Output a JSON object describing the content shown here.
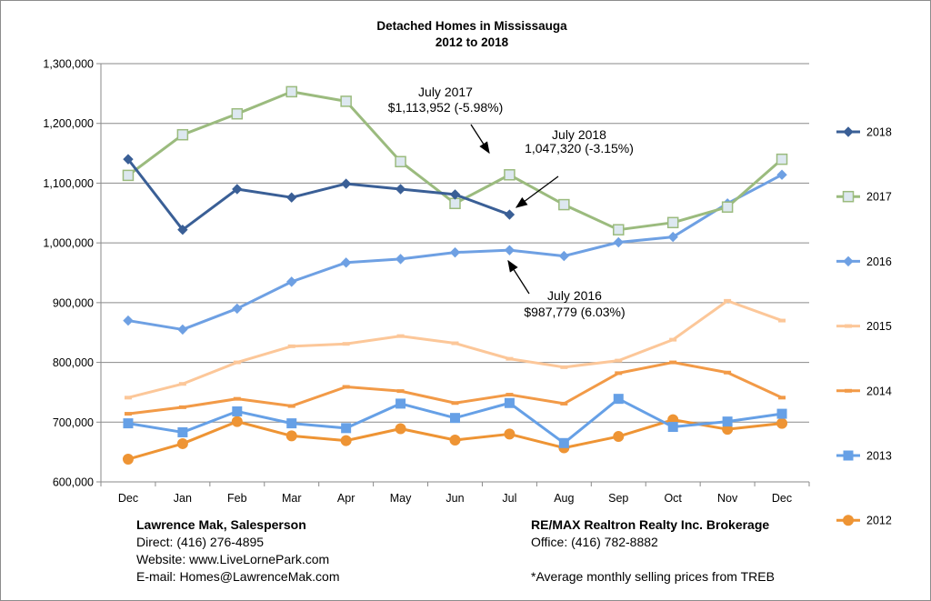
{
  "chart_data": {
    "type": "line",
    "title": "Detached Homes in Mississauga",
    "subtitle": "2012 to 2018",
    "categories": [
      "Dec",
      "Jan",
      "Feb",
      "Mar",
      "Apr",
      "May",
      "Jun",
      "Jul",
      "Aug",
      "Sep",
      "Oct",
      "Nov",
      "Dec"
    ],
    "ylim": [
      600000,
      1300000
    ],
    "yticks": [
      "600,000",
      "700,000",
      "800,000",
      "900,000",
      "1,000,000",
      "1,100,000",
      "1,200,000",
      "1,300,000"
    ],
    "grid": true,
    "legend_position": "right",
    "series": [
      {
        "name": "2018",
        "color": "#3a5f96",
        "marker": "diamond",
        "values": [
          1140000,
          1022000,
          1090000,
          1076000,
          1099000,
          1090000,
          1081000,
          1047320,
          null,
          null,
          null,
          null,
          null
        ]
      },
      {
        "name": "2017",
        "color": "#9bbb7e",
        "marker": "square-open",
        "values": [
          1113000,
          1181000,
          1216000,
          1253000,
          1237000,
          1136000,
          1066000,
          1113952,
          1064000,
          1022000,
          1034000,
          1060000,
          1140000
        ]
      },
      {
        "name": "2016",
        "color": "#6ea0e3",
        "marker": "diamond",
        "values": [
          870000,
          855000,
          890000,
          935000,
          967000,
          973000,
          984000,
          987779,
          978000,
          1001000,
          1010000,
          1066000,
          1114000
        ]
      },
      {
        "name": "2015",
        "color": "#fcc799",
        "marker": "dash",
        "values": [
          741000,
          764000,
          800000,
          827000,
          831000,
          844000,
          832000,
          806000,
          792000,
          803000,
          838000,
          903000,
          870000
        ]
      },
      {
        "name": "2014",
        "color": "#f29a47",
        "marker": "dash",
        "values": [
          714000,
          725000,
          739000,
          727000,
          759000,
          752000,
          732000,
          746000,
          731000,
          782000,
          800000,
          783000,
          741000
        ]
      },
      {
        "name": "2013",
        "color": "#66a0e6",
        "marker": "square",
        "values": [
          698000,
          683000,
          718000,
          698000,
          690000,
          731000,
          707000,
          732000,
          665000,
          739000,
          692000,
          701000,
          714000
        ]
      },
      {
        "name": "2012",
        "color": "#ee9434",
        "marker": "circle",
        "values": [
          638000,
          664000,
          701000,
          677000,
          669000,
          689000,
          670000,
          680000,
          657000,
          676000,
          704000,
          688000,
          698000
        ]
      }
    ],
    "annotations": [
      {
        "line1": "July 2017",
        "line2": "$1,113,952 (-5.98%)",
        "series": "2017"
      },
      {
        "line1": "July 2018",
        "line2": "1,047,320 (-3.15%)",
        "series": "2018"
      },
      {
        "line1": "July 2016",
        "line2": "$987,779 (6.03%)",
        "series": "2016"
      }
    ]
  },
  "footer": {
    "left": {
      "name": "Lawrence Mak, Salesperson",
      "direct": "Direct:  (416) 276-4895",
      "website": "Website:  www.LiveLornePark.com",
      "email": "E-mail:  Homes@LawrenceMak.com"
    },
    "right": {
      "brokerage": "RE/MAX Realtron Realty Inc. Brokerage",
      "office": "Office: (416) 782-8882",
      "note": "*Average monthly selling prices from TREB"
    }
  }
}
